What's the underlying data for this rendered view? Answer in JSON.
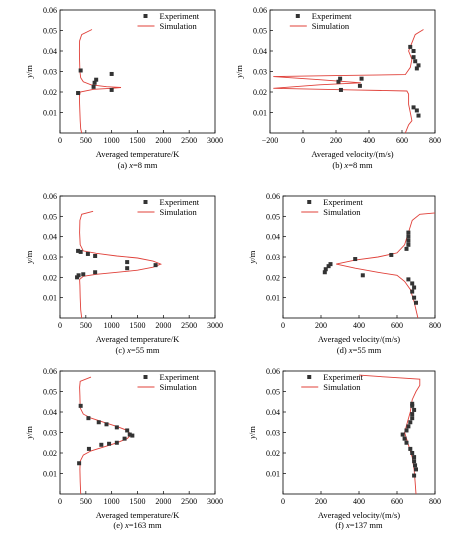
{
  "legend": {
    "experiment": "Experiment",
    "simulation": "Simulation"
  },
  "colors": {
    "simulation": "#e0413a",
    "experiment": "#333333",
    "axis": "#000000"
  },
  "chart_data": [
    {
      "id": "a",
      "type": "scatter+line",
      "caption_prefix": "(a) ",
      "caption_var": "x",
      "caption_rest": "=8 mm",
      "xlabel": "Averaged temperature/K",
      "ylabel_var": "y",
      "ylabel_unit": "/m",
      "xlim": [
        0,
        3000
      ],
      "ylim": [
        0,
        0.06
      ],
      "xticks": [
        0,
        500,
        1000,
        1500,
        2000,
        2500,
        3000
      ],
      "yticks": [
        0.01,
        0.02,
        0.03,
        0.04,
        0.05,
        0.06
      ],
      "simulation": [
        [
          420,
          0.0
        ],
        [
          400,
          0.002
        ],
        [
          390,
          0.006
        ],
        [
          385,
          0.01
        ],
        [
          380,
          0.014
        ],
        [
          375,
          0.018
        ],
        [
          390,
          0.02
        ],
        [
          650,
          0.0213
        ],
        [
          1000,
          0.0218
        ],
        [
          1180,
          0.0222
        ],
        [
          900,
          0.0226
        ],
        [
          600,
          0.0235
        ],
        [
          450,
          0.025
        ],
        [
          400,
          0.027
        ],
        [
          385,
          0.03
        ],
        [
          380,
          0.035
        ],
        [
          375,
          0.04
        ],
        [
          380,
          0.045
        ],
        [
          420,
          0.048
        ],
        [
          620,
          0.0505
        ]
      ],
      "experiment": [
        [
          350,
          0.0195
        ],
        [
          650,
          0.0225
        ],
        [
          700,
          0.026
        ],
        [
          400,
          0.0305
        ],
        [
          1000,
          0.0288
        ],
        [
          1000,
          0.021
        ],
        [
          670,
          0.0245
        ]
      ]
    },
    {
      "id": "b",
      "type": "scatter+line",
      "caption_prefix": "(b) ",
      "caption_var": "x",
      "caption_rest": "=8 mm",
      "xlabel": "Averaged velocity/(m/s)",
      "ylabel_var": "y",
      "ylabel_unit": "/m",
      "xlim": [
        -200,
        800
      ],
      "ylim": [
        0,
        0.06
      ],
      "xticks": [
        -200,
        0,
        200,
        400,
        600,
        800
      ],
      "yticks": [
        0.01,
        0.02,
        0.03,
        0.04,
        0.05,
        0.06
      ],
      "simulation": [
        [
          620,
          0.0
        ],
        [
          640,
          0.004
        ],
        [
          660,
          0.006
        ],
        [
          650,
          0.01
        ],
        [
          640,
          0.014
        ],
        [
          640,
          0.019
        ],
        [
          630,
          0.0205
        ],
        [
          300,
          0.021
        ],
        [
          -180,
          0.0218
        ],
        [
          100,
          0.0235
        ],
        [
          350,
          0.0245
        ],
        [
          100,
          0.026
        ],
        [
          -180,
          0.0275
        ],
        [
          200,
          0.028
        ],
        [
          620,
          0.0285
        ],
        [
          650,
          0.032
        ],
        [
          660,
          0.036
        ],
        [
          640,
          0.04
        ],
        [
          660,
          0.044
        ],
        [
          680,
          0.048
        ],
        [
          730,
          0.0505
        ]
      ],
      "experiment": [
        [
          700,
          0.0085
        ],
        [
          690,
          0.011
        ],
        [
          670,
          0.0125
        ],
        [
          230,
          0.021
        ],
        [
          215,
          0.025
        ],
        [
          225,
          0.0265
        ],
        [
          345,
          0.023
        ],
        [
          355,
          0.0265
        ],
        [
          690,
          0.0315
        ],
        [
          700,
          0.033
        ],
        [
          680,
          0.035
        ],
        [
          670,
          0.037
        ],
        [
          670,
          0.04
        ],
        [
          650,
          0.042
        ]
      ]
    },
    {
      "id": "c",
      "type": "scatter+line",
      "caption_prefix": "(c) ",
      "caption_var": "x",
      "caption_rest": "=55 mm",
      "xlabel": "Averaged temperature/K",
      "ylabel_var": "y",
      "ylabel_unit": "/m",
      "xlim": [
        0,
        3000
      ],
      "ylim": [
        0,
        0.06
      ],
      "xticks": [
        0,
        500,
        1000,
        1500,
        2000,
        2500,
        3000
      ],
      "yticks": [
        0.01,
        0.02,
        0.03,
        0.04,
        0.05,
        0.06
      ],
      "simulation": [
        [
          420,
          0.0
        ],
        [
          400,
          0.004
        ],
        [
          390,
          0.01
        ],
        [
          385,
          0.016
        ],
        [
          380,
          0.019
        ],
        [
          450,
          0.0205
        ],
        [
          700,
          0.0215
        ],
        [
          1100,
          0.0225
        ],
        [
          1500,
          0.0235
        ],
        [
          1800,
          0.025
        ],
        [
          1950,
          0.0265
        ],
        [
          1800,
          0.028
        ],
        [
          1500,
          0.0295
        ],
        [
          1100,
          0.0305
        ],
        [
          700,
          0.0318
        ],
        [
          450,
          0.033
        ],
        [
          390,
          0.036
        ],
        [
          380,
          0.042
        ],
        [
          385,
          0.048
        ],
        [
          420,
          0.051
        ],
        [
          640,
          0.0525
        ]
      ],
      "experiment": [
        [
          330,
          0.02
        ],
        [
          360,
          0.021
        ],
        [
          450,
          0.0215
        ],
        [
          680,
          0.0225
        ],
        [
          1300,
          0.0245
        ],
        [
          1300,
          0.0275
        ],
        [
          1850,
          0.026
        ],
        [
          680,
          0.0305
        ],
        [
          540,
          0.0315
        ],
        [
          400,
          0.0325
        ],
        [
          350,
          0.033
        ]
      ]
    },
    {
      "id": "d",
      "type": "scatter+line",
      "caption_prefix": "(d) ",
      "caption_var": "x",
      "caption_rest": "=55 mm",
      "xlabel": "Averaged velocity/(m/s)",
      "ylabel_var": "y",
      "ylabel_unit": "/m",
      "xlim": [
        0,
        800
      ],
      "ylim": [
        0,
        0.06
      ],
      "xticks": [
        0,
        200,
        400,
        600,
        800
      ],
      "yticks": [
        0.01,
        0.02,
        0.03,
        0.04,
        0.05,
        0.06
      ],
      "simulation": [
        [
          710,
          0.0
        ],
        [
          700,
          0.004
        ],
        [
          690,
          0.008
        ],
        [
          670,
          0.014
        ],
        [
          640,
          0.018
        ],
        [
          600,
          0.021
        ],
        [
          500,
          0.0225
        ],
        [
          380,
          0.0245
        ],
        [
          280,
          0.0265
        ],
        [
          380,
          0.0285
        ],
        [
          500,
          0.03
        ],
        [
          600,
          0.032
        ],
        [
          640,
          0.036
        ],
        [
          660,
          0.042
        ],
        [
          680,
          0.048
        ],
        [
          720,
          0.051
        ],
        [
          900,
          0.0525
        ]
      ],
      "experiment": [
        [
          700,
          0.0075
        ],
        [
          690,
          0.01
        ],
        [
          680,
          0.013
        ],
        [
          690,
          0.015
        ],
        [
          680,
          0.017
        ],
        [
          660,
          0.019
        ],
        [
          220,
          0.0225
        ],
        [
          225,
          0.024
        ],
        [
          240,
          0.0255
        ],
        [
          250,
          0.0265
        ],
        [
          420,
          0.021
        ],
        [
          380,
          0.029
        ],
        [
          570,
          0.031
        ],
        [
          650,
          0.034
        ],
        [
          660,
          0.036
        ],
        [
          660,
          0.038
        ],
        [
          660,
          0.04
        ],
        [
          660,
          0.042
        ]
      ]
    },
    {
      "id": "e",
      "type": "scatter+line",
      "caption_prefix": "(e) ",
      "caption_var": "x",
      "caption_rest": "=163 mm",
      "xlabel": "Averaged temperature/K",
      "ylabel_var": "y",
      "ylabel_unit": "/m",
      "xlim": [
        0,
        3000
      ],
      "ylim": [
        0,
        0.06
      ],
      "xticks": [
        0,
        500,
        1000,
        1500,
        2000,
        2500,
        3000
      ],
      "yticks": [
        0.01,
        0.02,
        0.03,
        0.04,
        0.05,
        0.06
      ],
      "simulation": [
        [
          400,
          0.0
        ],
        [
          390,
          0.006
        ],
        [
          385,
          0.012
        ],
        [
          390,
          0.016
        ],
        [
          450,
          0.019
        ],
        [
          600,
          0.021
        ],
        [
          850,
          0.023
        ],
        [
          1100,
          0.025
        ],
        [
          1300,
          0.027
        ],
        [
          1380,
          0.029
        ],
        [
          1300,
          0.031
        ],
        [
          1100,
          0.033
        ],
        [
          850,
          0.035
        ],
        [
          600,
          0.037
        ],
        [
          450,
          0.039
        ],
        [
          390,
          0.042
        ],
        [
          385,
          0.048
        ],
        [
          380,
          0.052
        ],
        [
          390,
          0.055
        ],
        [
          600,
          0.057
        ]
      ],
      "experiment": [
        [
          370,
          0.015
        ],
        [
          560,
          0.022
        ],
        [
          800,
          0.024
        ],
        [
          950,
          0.0245
        ],
        [
          1100,
          0.025
        ],
        [
          1250,
          0.027
        ],
        [
          1350,
          0.029
        ],
        [
          1400,
          0.0285
        ],
        [
          1300,
          0.031
        ],
        [
          1100,
          0.0325
        ],
        [
          900,
          0.034
        ],
        [
          750,
          0.035
        ],
        [
          550,
          0.037
        ],
        [
          400,
          0.043
        ]
      ]
    },
    {
      "id": "f",
      "type": "scatter+line",
      "caption_prefix": "(f) ",
      "caption_var": "x",
      "caption_rest": "=137 mm",
      "xlabel": "Averaged velocity/(m/s)",
      "ylabel_var": "y",
      "ylabel_unit": "/m",
      "xlim": [
        0,
        800
      ],
      "ylim": [
        0,
        0.06
      ],
      "xticks": [
        0,
        200,
        400,
        600,
        800
      ],
      "yticks": [
        0.01,
        0.02,
        0.03,
        0.04,
        0.05,
        0.06
      ],
      "simulation": [
        [
          700,
          0.0
        ],
        [
          695,
          0.006
        ],
        [
          690,
          0.012
        ],
        [
          680,
          0.018
        ],
        [
          660,
          0.024
        ],
        [
          640,
          0.03
        ],
        [
          655,
          0.035
        ],
        [
          670,
          0.04
        ],
        [
          680,
          0.046
        ],
        [
          700,
          0.05
        ],
        [
          720,
          0.053
        ],
        [
          720,
          0.056
        ],
        [
          550,
          0.057
        ],
        [
          400,
          0.058
        ]
      ],
      "experiment": [
        [
          690,
          0.009
        ],
        [
          700,
          0.012
        ],
        [
          695,
          0.014
        ],
        [
          690,
          0.016
        ],
        [
          690,
          0.018
        ],
        [
          680,
          0.02
        ],
        [
          670,
          0.022
        ],
        [
          650,
          0.025
        ],
        [
          640,
          0.027
        ],
        [
          630,
          0.029
        ],
        [
          650,
          0.031
        ],
        [
          660,
          0.033
        ],
        [
          670,
          0.035
        ],
        [
          680,
          0.037
        ],
        [
          680,
          0.039
        ],
        [
          690,
          0.041
        ],
        [
          680,
          0.043
        ],
        [
          680,
          0.044
        ]
      ]
    }
  ]
}
